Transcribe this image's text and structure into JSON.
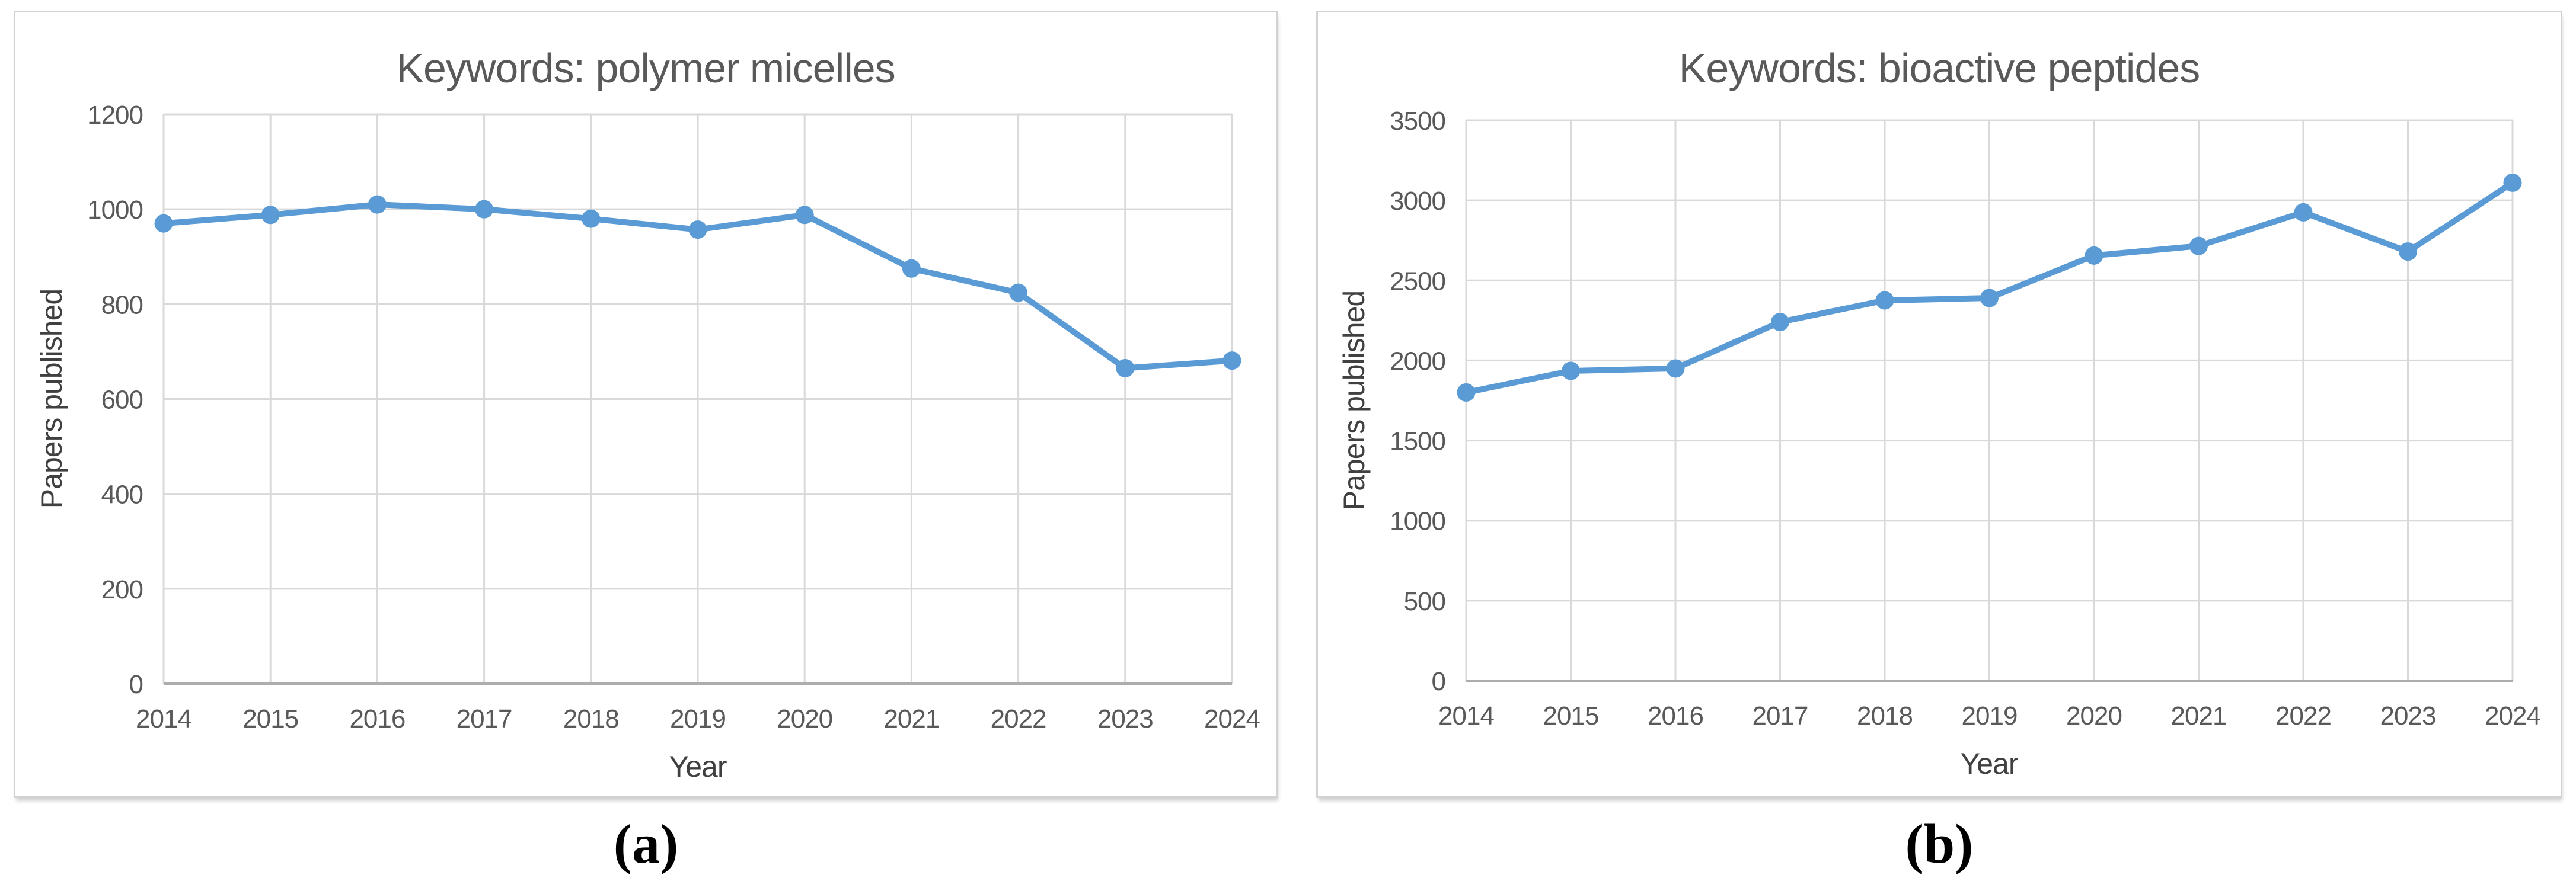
{
  "colors": {
    "line": "#5B9BD5",
    "grid": "#D9D9D9",
    "axis": "#ADADAD",
    "tick_text": "#595959",
    "title_text": "#595959",
    "axis_title_text": "#404040",
    "panel_border": "#D2D2D2"
  },
  "chart_data": [
    {
      "type": "line",
      "title": "Keywords: polymer micelles",
      "xlabel": "Year",
      "ylabel": "Papers published",
      "categories": [
        "2014",
        "2015",
        "2016",
        "2017",
        "2018",
        "2019",
        "2020",
        "2021",
        "2022",
        "2023",
        "2024"
      ],
      "values": [
        970,
        988,
        1010,
        1000,
        980,
        957,
        988,
        875,
        824,
        665,
        681
      ],
      "ylim": [
        0,
        1200
      ],
      "ytick_step": 200,
      "grid": true,
      "legend": "none",
      "panel_label": "(a)"
    },
    {
      "type": "line",
      "title": "Keywords: bioactive peptides",
      "xlabel": "Year",
      "ylabel": "Papers published",
      "categories": [
        "2014",
        "2015",
        "2016",
        "2017",
        "2018",
        "2019",
        "2020",
        "2021",
        "2022",
        "2023",
        "2024"
      ],
      "values": [
        1800,
        1935,
        1950,
        2240,
        2375,
        2390,
        2655,
        2715,
        2925,
        2680,
        3110
      ],
      "ylim": [
        0,
        3500
      ],
      "ytick_step": 500,
      "grid": true,
      "legend": "none",
      "panel_label": "(b)"
    }
  ]
}
